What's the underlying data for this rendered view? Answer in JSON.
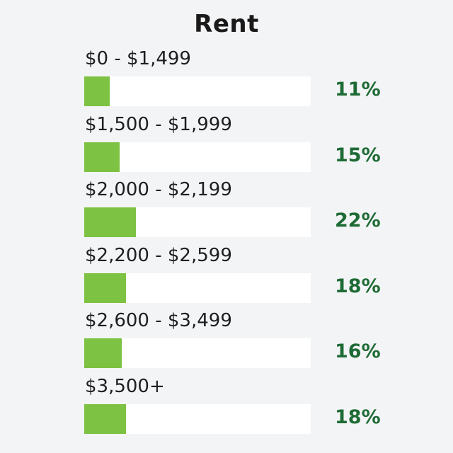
{
  "chart_data": {
    "type": "bar",
    "title": "Rent",
    "categories": [
      "$0 - $1,499",
      "$1,500 - $1,999",
      "$2,000 - $2,199",
      "$2,200 - $2,599",
      "$2,600 - $3,499",
      "$3,500+"
    ],
    "values": [
      11,
      15,
      22,
      18,
      16,
      18
    ],
    "value_labels": [
      "11%",
      "15%",
      "22%",
      "18%",
      "16%",
      "18%"
    ],
    "unit": "%",
    "orientation": "horizontal",
    "colors": {
      "bar": "#7dc242",
      "track": "#ffffff",
      "value_text": "#1e6b35",
      "label_text": "#1e1e1e",
      "background": "#f3f4f6"
    }
  }
}
